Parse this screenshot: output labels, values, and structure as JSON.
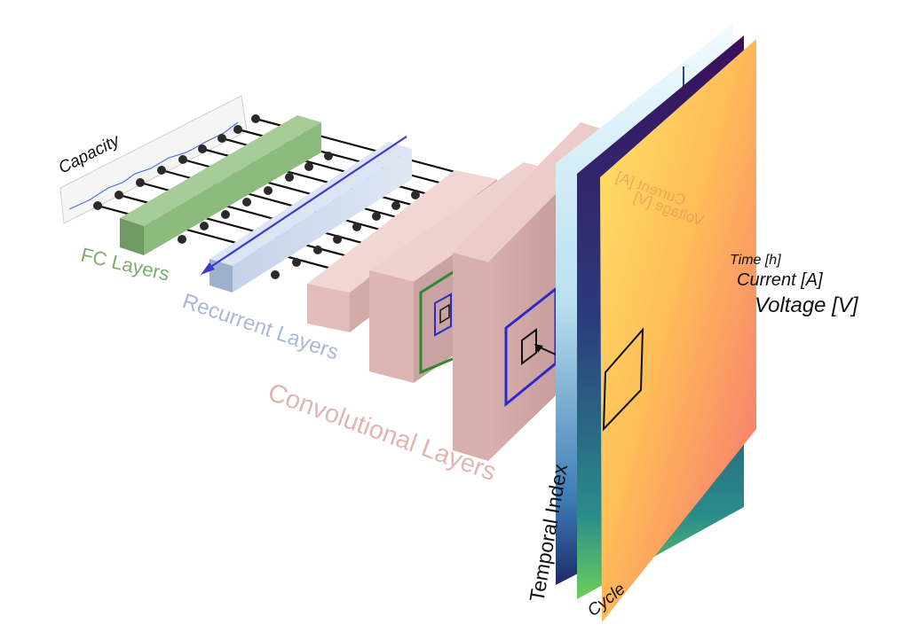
{
  "labels": {
    "capacity": "Capacity",
    "fc_layers": "FC Layers",
    "recurrent_layers": "Recurrent Layers",
    "convolutional_layers": "Convolutional Layers",
    "time": "Time [h]",
    "current": "Current [A]",
    "voltage": "Voltage [V]",
    "temporal_index": "Temporal Index",
    "cycle": "Cycle"
  },
  "colors": {
    "fc": "#7dac6f",
    "recurrent": "#b8c4dc",
    "conv": "#e8c3bf",
    "arrow": "#3c3ccc",
    "kernel_blue": "#2b2bc8",
    "kernel_green": "#2e8b2e"
  }
}
